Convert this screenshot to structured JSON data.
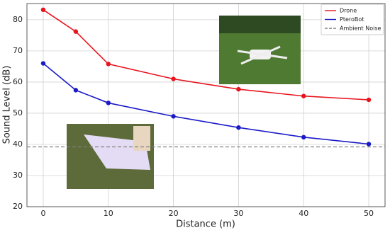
{
  "chart_data": {
    "type": "line",
    "x_label": "Distance (m)",
    "y_label": "Sound Level (dB)",
    "x": [
      0,
      5,
      10,
      20,
      30,
      40,
      50
    ],
    "series": [
      {
        "name": "Drone",
        "color": "#e8141c",
        "values": [
          83.2,
          76.2,
          65.8,
          61.0,
          57.7,
          55.5,
          54.3
        ]
      },
      {
        "name": "PteroBot",
        "color": "#1a1ac8",
        "values": [
          66.0,
          57.4,
          53.3,
          49.0,
          45.4,
          42.3,
          40.1
        ]
      }
    ],
    "hlines": [
      {
        "name": "Ambient Noise",
        "color": "#808080",
        "value": 39.2
      }
    ],
    "xlim": [
      -2.5,
      52.5
    ],
    "ylim": [
      20,
      85.2
    ],
    "xticks": [
      0,
      10,
      20,
      30,
      40,
      50
    ],
    "yticks": [
      20,
      30,
      40,
      50,
      60,
      70,
      80
    ],
    "grid": true,
    "legend": "upper-right"
  }
}
